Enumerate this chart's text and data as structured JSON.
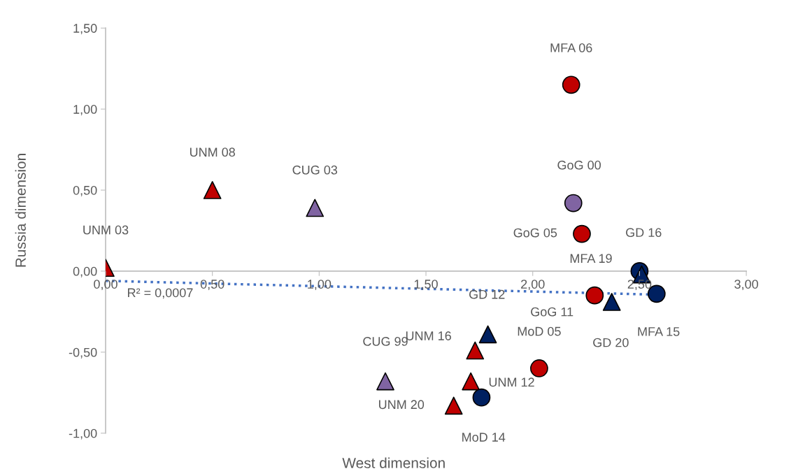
{
  "chart_data": {
    "type": "scatter",
    "xlabel": "West dimension",
    "ylabel": "Russia dimension",
    "grid": false,
    "legend": false,
    "xlim": [
      0,
      3
    ],
    "ylim": [
      -1,
      1.5
    ],
    "xticks": [
      {
        "value": 0,
        "label": "0,00"
      },
      {
        "value": 0.5,
        "label": "0,50"
      },
      {
        "value": 1,
        "label": "1,00"
      },
      {
        "value": 1.5,
        "label": "1,50"
      },
      {
        "value": 2,
        "label": "2,00"
      },
      {
        "value": 2.5,
        "label": "2,50"
      },
      {
        "value": 3,
        "label": "3,00"
      }
    ],
    "yticks": [
      {
        "value": -1,
        "label": "-1,00"
      },
      {
        "value": -0.5,
        "label": "-0,50"
      },
      {
        "value": 0,
        "label": "0,00"
      },
      {
        "value": 0.5,
        "label": "0,50"
      },
      {
        "value": 1,
        "label": "1,00"
      },
      {
        "value": 1.5,
        "label": "1,50"
      }
    ],
    "annotations": [
      "R² = 0,0007"
    ],
    "series": [
      {
        "type": "scatter",
        "marker": "triangle",
        "color": "#c00000",
        "x": [
          0.0,
          0.5,
          1.73,
          1.71,
          1.63
        ],
        "values": [
          0.02,
          0.5,
          -0.49,
          -0.68,
          -0.83
        ],
        "value_labels": [
          "UNM 03",
          "UNM 08",
          "UNM 16",
          "UNM 12",
          "UNM 20"
        ]
      },
      {
        "type": "scatter",
        "marker": "circle",
        "color": "#c00000",
        "x": [
          2.18,
          2.23,
          2.29,
          2.03
        ],
        "values": [
          1.15,
          0.23,
          -0.15,
          -0.6
        ],
        "value_labels": [
          "MFA 06",
          "GoG 05",
          "GoG 11",
          "MoD 05"
        ]
      },
      {
        "type": "scatter",
        "marker": "triangle",
        "color": "#8064a2",
        "x": [
          0.98,
          1.31
        ],
        "values": [
          0.39,
          -0.68
        ],
        "value_labels": [
          "CUG 03",
          "CUG 99"
        ]
      },
      {
        "type": "scatter",
        "marker": "circle",
        "color": "#8064a2",
        "x": [
          2.19
        ],
        "values": [
          0.42
        ],
        "value_labels": [
          "GoG 00"
        ]
      },
      {
        "type": "scatter",
        "marker": "circle",
        "color": "#002060",
        "x": [
          2.5,
          2.58,
          1.76
        ],
        "values": [
          0.0,
          -0.14,
          -0.78
        ],
        "value_labels": [
          "MFA 19",
          "MFA 15",
          "MoD 14"
        ]
      },
      {
        "type": "scatter",
        "marker": "triangle",
        "color": "#002060",
        "x": [
          2.51,
          2.37,
          1.79
        ],
        "values": [
          -0.02,
          -0.19,
          -0.39
        ],
        "value_labels": [
          "GD 16",
          "GD 20",
          "GD 12"
        ]
      },
      {
        "type": "line",
        "line_style": "dotted",
        "color": "#4472c4",
        "x": [
          0,
          2.58
        ],
        "values": [
          -0.06,
          -0.145
        ]
      }
    ]
  }
}
